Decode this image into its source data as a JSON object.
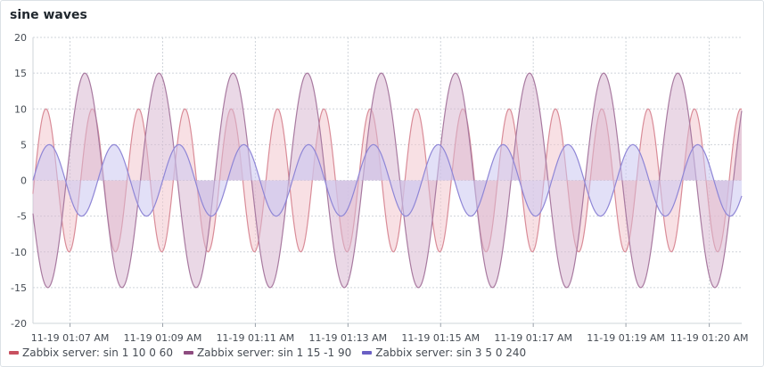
{
  "panel": {
    "title": "sine waves"
  },
  "chart_data": {
    "type": "area",
    "title": "sine waves",
    "xlabel": "",
    "ylabel": "",
    "ylim": [
      -20,
      20
    ],
    "y_ticks": [
      20,
      15,
      10,
      5,
      0,
      -5,
      -10,
      -15,
      -20
    ],
    "x_range_minutes": [
      0,
      15.3
    ],
    "x_ticks": [
      {
        "label": "11-19 01:07 AM",
        "minute": 0.8
      },
      {
        "label": "11-19 01:09 AM",
        "minute": 2.8
      },
      {
        "label": "11-19 01:11 AM",
        "minute": 4.8
      },
      {
        "label": "11-19 01:13 AM",
        "minute": 6.8
      },
      {
        "label": "11-19 01:15 AM",
        "minute": 8.8
      },
      {
        "label": "11-19 01:17 AM",
        "minute": 10.8
      },
      {
        "label": "11-19 01:19 AM",
        "minute": 12.8
      },
      {
        "label": "11-19 01:20 AM",
        "minute": 14.6
      }
    ],
    "grid": true,
    "legend_position": "bottom-left",
    "series": [
      {
        "name": "Zabbix server: sin 1 10 0 60",
        "amplitude": 10,
        "period_minutes": 1.0,
        "phase_minutes": 0.03,
        "line_color": "#d98c98",
        "fill_color": "#f2c6cd"
      },
      {
        "name": "Zabbix server: sin 1 15 -1 90",
        "amplitude": 15,
        "period_minutes": 1.6,
        "phase_minutes": 0.72,
        "line_color": "#a87aa0",
        "fill_color": "#d9b8d2"
      },
      {
        "name": "Zabbix server: sin 3 5 0 240",
        "amplitude": 5,
        "period_minutes": 1.4,
        "phase_minutes": 0.0,
        "line_color": "#8f86d6",
        "fill_color": "#cbc6f0"
      }
    ]
  },
  "legend": {
    "items": [
      {
        "label": "Zabbix server: sin 1 10 0 60",
        "color": "#c8505f"
      },
      {
        "label": "Zabbix server: sin 1 15 -1 90",
        "color": "#8e4b7f"
      },
      {
        "label": "Zabbix server: sin 3 5 0 240",
        "color": "#6a5fc4"
      }
    ]
  }
}
